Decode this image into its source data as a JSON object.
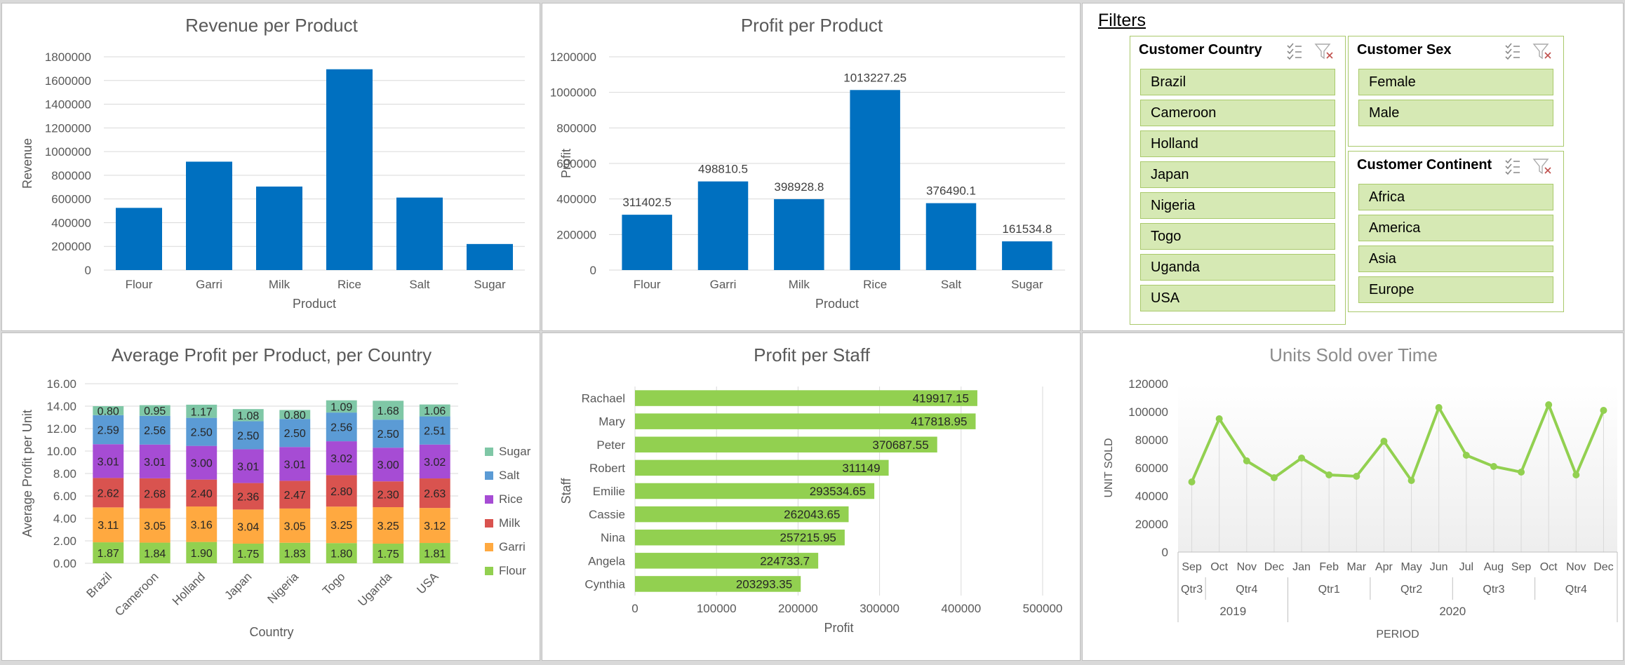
{
  "colors": {
    "blue": "#0070c0",
    "green": "#92d050",
    "flour": "#92d050",
    "garri": "#ffa940",
    "milk": "#d9534f",
    "rice": "#a64cd4",
    "salt": "#5b9bd5",
    "sugar": "#7fc7a6"
  },
  "revenue_chart": {
    "title": "Revenue per Product",
    "chart_data": {
      "type": "bar",
      "title": "Revenue per Product",
      "xlabel": "Product",
      "ylabel": "Revenue",
      "categories": [
        "Flour",
        "Garri",
        "Milk",
        "Rice",
        "Salt",
        "Sugar"
      ],
      "values": [
        525000,
        915000,
        705000,
        1695000,
        612000,
        220000
      ],
      "ylim": [
        0,
        1800000
      ],
      "yticks": [
        "0",
        "200000",
        "400000",
        "600000",
        "800000",
        "1000000",
        "1200000",
        "1400000",
        "1600000",
        "1800000"
      ]
    }
  },
  "profit_chart": {
    "title": "Profit per Product",
    "chart_data": {
      "type": "bar",
      "title": "Profit per Product",
      "xlabel": "Product",
      "ylabel": "Profit",
      "categories": [
        "Flour",
        "Garri",
        "Milk",
        "Rice",
        "Salt",
        "Sugar"
      ],
      "values": [
        311402.5,
        498810.5,
        398928.8,
        1013227.25,
        376490.1,
        161534.8
      ],
      "labels": [
        "311402.5",
        "498810.5",
        "398928.8",
        "1013227.25",
        "376490.1",
        "161534.8"
      ],
      "ylim": [
        0,
        1200000
      ],
      "yticks": [
        "0",
        "200000",
        "400000",
        "600000",
        "800000",
        "1000000",
        "1200000"
      ]
    }
  },
  "filters": {
    "title": "Filters",
    "country": {
      "title": "Customer Country",
      "items": [
        "Brazil",
        "Cameroon",
        "Holland",
        "Japan",
        "Nigeria",
        "Togo",
        "Uganda",
        "USA"
      ]
    },
    "sex": {
      "title": "Customer Sex",
      "items": [
        "Female",
        "Male"
      ]
    },
    "continent": {
      "title": "Customer Continent",
      "items": [
        "Africa",
        "America",
        "Asia",
        "Europe"
      ]
    }
  },
  "avg_chart": {
    "title": "Average Profit per Product, per Country",
    "chart_data": {
      "type": "bar",
      "stacked": true,
      "title": "Average Profit per Product, per Country",
      "xlabel": "Country",
      "ylabel": "Average Profit per Unit",
      "categories": [
        "Brazil",
        "Cameroon",
        "Holland",
        "Japan",
        "Nigeria",
        "Togo",
        "Uganda",
        "USA"
      ],
      "ylim": [
        0,
        16
      ],
      "yticks": [
        "0.00",
        "2.00",
        "4.00",
        "6.00",
        "8.00",
        "10.00",
        "12.00",
        "14.00",
        "16.00"
      ],
      "legend_position": "right",
      "series": [
        {
          "name": "Flour",
          "values": [
            1.87,
            1.84,
            1.9,
            1.75,
            1.83,
            1.8,
            1.75,
            1.81
          ],
          "labels": [
            "1.87",
            "1.84",
            "1.90",
            "1.75",
            "1.83",
            "1.80",
            "1.75",
            "1.81"
          ]
        },
        {
          "name": "Garri",
          "values": [
            3.11,
            3.05,
            3.16,
            3.04,
            3.05,
            3.25,
            3.25,
            3.12
          ],
          "labels": [
            "3.11",
            "3.05",
            "3.16",
            "3.04",
            "3.05",
            "3.25",
            "3.25",
            "3.12"
          ]
        },
        {
          "name": "Milk",
          "values": [
            2.62,
            2.68,
            2.4,
            2.36,
            2.47,
            2.8,
            2.3,
            2.63
          ],
          "labels": [
            "2.62",
            "2.68",
            "2.40",
            "2.36",
            "2.47",
            "2.80",
            "2.30",
            "2.63"
          ]
        },
        {
          "name": "Rice",
          "values": [
            3.01,
            3.01,
            3.0,
            3.01,
            3.01,
            3.02,
            3.0,
            3.02
          ],
          "labels": [
            "3.01",
            "3.01",
            "3.00",
            "3.01",
            "3.01",
            "3.02",
            "3.00",
            "3.02"
          ]
        },
        {
          "name": "Salt",
          "values": [
            2.59,
            2.56,
            2.5,
            2.5,
            2.5,
            2.56,
            2.5,
            2.51
          ],
          "labels": [
            "2.59",
            "2.56",
            "2.50",
            "2.50",
            "2.50",
            "2.56",
            "2.50",
            "2.51"
          ]
        },
        {
          "name": "Sugar",
          "values": [
            0.8,
            0.95,
            1.17,
            1.08,
            0.8,
            1.09,
            1.68,
            1.06
          ],
          "labels": [
            "0.80",
            "0.95",
            "1.17",
            "1.08",
            "0.80",
            "1.09",
            "1.68",
            "1.06"
          ]
        }
      ]
    }
  },
  "staff_chart": {
    "title": "Profit per Staff",
    "chart_data": {
      "type": "bar",
      "orientation": "horizontal",
      "title": "Profit per Staff",
      "xlabel": "Profit",
      "ylabel": "Staff",
      "categories": [
        "Rachael",
        "Mary",
        "Peter",
        "Robert",
        "Emilie",
        "Cassie",
        "Nina",
        "Angela",
        "Cynthia"
      ],
      "values": [
        419917.15,
        417818.95,
        370687.55,
        311149,
        293534.65,
        262043.65,
        257215.95,
        224733.7,
        203293.35
      ],
      "labels": [
        "419917.15",
        "417818.95",
        "370687.55",
        "311149",
        "293534.65",
        "262043.65",
        "257215.95",
        "224733.7",
        "203293.35"
      ],
      "xlim": [
        0,
        500000
      ],
      "xticks": [
        "0",
        "100000",
        "200000",
        "300000",
        "400000",
        "500000"
      ]
    }
  },
  "units_chart": {
    "title": "Units Sold over Time",
    "chart_data": {
      "type": "line",
      "title": "Units Sold over Time",
      "xlabel": "PERIOD",
      "ylabel": "UNIT SOLD",
      "x": [
        "Sep",
        "Oct",
        "Nov",
        "Dec",
        "Jan",
        "Feb",
        "Mar",
        "Apr",
        "May",
        "Jun",
        "Jul",
        "Aug",
        "Sep",
        "Oct",
        "Nov",
        "Dec"
      ],
      "values": [
        50000,
        95000,
        65000,
        53000,
        67000,
        55000,
        54000,
        79000,
        51000,
        103000,
        69000,
        61000,
        57000,
        105000,
        55000,
        101000
      ],
      "ylim": [
        0,
        120000
      ],
      "yticks": [
        "0",
        "20000",
        "40000",
        "60000",
        "80000",
        "100000",
        "120000"
      ],
      "quarters": [
        {
          "label": "Qtr3",
          "span": 1
        },
        {
          "label": "Qtr4",
          "span": 3
        },
        {
          "label": "Qtr1",
          "span": 3
        },
        {
          "label": "Qtr2",
          "span": 3
        },
        {
          "label": "Qtr3",
          "span": 3
        },
        {
          "label": "Qtr4",
          "span": 3
        }
      ],
      "years": [
        {
          "label": "2019",
          "span": 4
        },
        {
          "label": "2020",
          "span": 12
        }
      ]
    }
  }
}
